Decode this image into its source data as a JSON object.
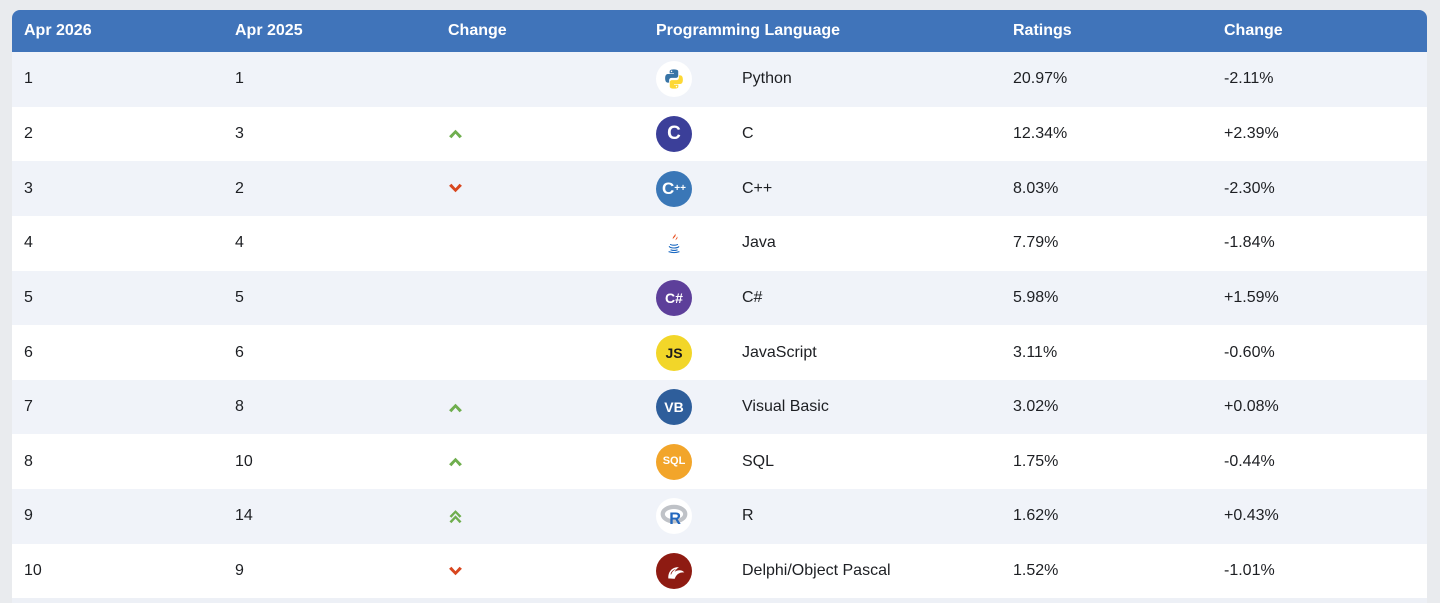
{
  "page": {
    "background": "#e9ebee"
  },
  "table": {
    "header": {
      "bg": "#4074ba",
      "columns": [
        "Apr 2026",
        "Apr 2025",
        "Change",
        "Programming Language",
        "Ratings",
        "Change"
      ]
    },
    "colors": {
      "row_alt": "#f0f3f9",
      "row": "#ffffff",
      "text": "#1d1f23",
      "arrow_up": "#6fae4e",
      "arrow_down": "#d8471f"
    },
    "icons": {
      "python-icon": {
        "style": "svg",
        "bg": "#ffffff"
      },
      "c-icon": {
        "style": "text",
        "bg": "#3b3f99",
        "fg": "#ffffff",
        "label": "C",
        "size": "19px"
      },
      "cpp-icon": {
        "style": "cpp",
        "bg": "#3a77b7",
        "fg": "#ffffff",
        "label": "C++",
        "size": "17px"
      },
      "java-icon": {
        "style": "svg",
        "bg": "#ffffff"
      },
      "csharp-icon": {
        "style": "text",
        "bg": "#5d3f9a",
        "fg": "#ffffff",
        "label": "C#",
        "size": "14px"
      },
      "javascript-icon": {
        "style": "text",
        "bg": "#f2d629",
        "fg": "#1c1c1c",
        "label": "JS",
        "size": "14px"
      },
      "visual-basic-icon": {
        "style": "text",
        "bg": "#2e5e9b",
        "fg": "#ffffff",
        "label": "VB",
        "size": "14px"
      },
      "sql-icon": {
        "style": "text",
        "bg": "#f2a52a",
        "fg": "#ffffff",
        "label": "SQL",
        "size": "11px"
      },
      "r-icon": {
        "style": "svg",
        "bg": "#ffffff"
      },
      "delphi-icon": {
        "style": "svg",
        "bg": "#8e1b12"
      }
    },
    "rows": [
      {
        "rank_now": "1",
        "rank_prev": "1",
        "change": "none",
        "icon": "python-icon",
        "language": "Python",
        "ratings": "20.97%",
        "delta": "-2.11%"
      },
      {
        "rank_now": "2",
        "rank_prev": "3",
        "change": "up",
        "icon": "c-icon",
        "language": "C",
        "ratings": "12.34%",
        "delta": "+2.39%"
      },
      {
        "rank_now": "3",
        "rank_prev": "2",
        "change": "down",
        "icon": "cpp-icon",
        "language": "C++",
        "ratings": "8.03%",
        "delta": "-2.30%"
      },
      {
        "rank_now": "4",
        "rank_prev": "4",
        "change": "none",
        "icon": "java-icon",
        "language": "Java",
        "ratings": "7.79%",
        "delta": "-1.84%"
      },
      {
        "rank_now": "5",
        "rank_prev": "5",
        "change": "none",
        "icon": "csharp-icon",
        "language": "C#",
        "ratings": "5.98%",
        "delta": "+1.59%"
      },
      {
        "rank_now": "6",
        "rank_prev": "6",
        "change": "none",
        "icon": "javascript-icon",
        "language": "JavaScript",
        "ratings": "3.11%",
        "delta": "-0.60%"
      },
      {
        "rank_now": "7",
        "rank_prev": "8",
        "change": "up",
        "icon": "visual-basic-icon",
        "language": "Visual Basic",
        "ratings": "3.02%",
        "delta": "+0.08%"
      },
      {
        "rank_now": "8",
        "rank_prev": "10",
        "change": "up",
        "icon": "sql-icon",
        "language": "SQL",
        "ratings": "1.75%",
        "delta": "-0.44%"
      },
      {
        "rank_now": "9",
        "rank_prev": "14",
        "change": "up2",
        "icon": "r-icon",
        "language": "R",
        "ratings": "1.62%",
        "delta": "+0.43%"
      },
      {
        "rank_now": "10",
        "rank_prev": "9",
        "change": "down",
        "icon": "delphi-icon",
        "language": "Delphi/Object Pascal",
        "ratings": "1.52%",
        "delta": "-1.01%"
      }
    ]
  }
}
